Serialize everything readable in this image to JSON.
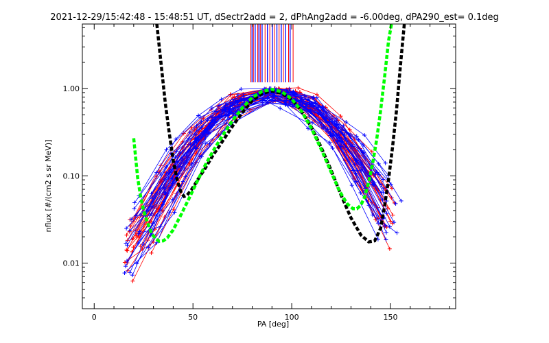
{
  "chart_data": {
    "type": "line",
    "title": "2021-12-29/15:42:48 - 15:48:51 UT, dSectr2add = 2, dPhAng2add = -6.00deg, dPA290_est=   0.1deg",
    "xlabel": "PA [deg]",
    "ylabel": "nflux [#/(cm2 s sr MeV)]",
    "xlim": [
      -6,
      183
    ],
    "ylim": [
      0.003,
      5.5
    ],
    "yscale": "log",
    "x_ticks": [
      0,
      50,
      100,
      150
    ],
    "x_tick_labels": [
      "0",
      "50",
      "100",
      "150"
    ],
    "y_ticks": [
      0.01,
      0.1,
      1.0
    ],
    "y_tick_labels": [
      "0.01",
      "0.10",
      "1.00"
    ],
    "grid": false,
    "colors": {
      "axes": "#000000",
      "red": "#ff0000",
      "blue": "#0000ff",
      "black_fit": "#000000",
      "green_fit": "#00ff00"
    },
    "vertical_markers": {
      "y_min": 1.18,
      "x_red": [
        79.3,
        80.6,
        82.8,
        84.1,
        86.5,
        88.9,
        91.1,
        93.6,
        95.8,
        98.4,
        100.7
      ],
      "x_blue": [
        79.9,
        81.5,
        83.4,
        85.0,
        87.7,
        90.2,
        92.5,
        94.7,
        96.9,
        99.2
      ]
    },
    "fit_curves": [
      {
        "color": "black",
        "style": "dashed",
        "points": [
          [
            31.7,
            5.5
          ],
          [
            34,
            1.8
          ],
          [
            36,
            0.68
          ],
          [
            38,
            0.31
          ],
          [
            40,
            0.15
          ],
          [
            42,
            0.09
          ],
          [
            44,
            0.064
          ],
          [
            45.5,
            0.058
          ],
          [
            47,
            0.06
          ],
          [
            49,
            0.068
          ],
          [
            51,
            0.08
          ],
          [
            53,
            0.095
          ],
          [
            56,
            0.12
          ],
          [
            60,
            0.17
          ],
          [
            65,
            0.25
          ],
          [
            70,
            0.37
          ],
          [
            75,
            0.53
          ],
          [
            80,
            0.73
          ],
          [
            85,
            0.88
          ],
          [
            90,
            0.94
          ],
          [
            95,
            0.88
          ],
          [
            100,
            0.75
          ],
          [
            105,
            0.55
          ],
          [
            110,
            0.36
          ],
          [
            115,
            0.21
          ],
          [
            120,
            0.115
          ],
          [
            125,
            0.06
          ],
          [
            130,
            0.033
          ],
          [
            135,
            0.021
          ],
          [
            139,
            0.0175
          ],
          [
            142,
            0.018
          ],
          [
            145,
            0.025
          ],
          [
            147,
            0.045
          ],
          [
            149,
            0.09
          ],
          [
            151,
            0.21
          ],
          [
            153,
            0.55
          ],
          [
            155,
            1.8
          ],
          [
            157,
            5.5
          ]
        ]
      },
      {
        "color": "green",
        "style": "dashed",
        "points": [
          [
            20,
            0.27
          ],
          [
            21,
            0.16
          ],
          [
            22,
            0.095
          ],
          [
            23.5,
            0.058
          ],
          [
            25,
            0.04
          ],
          [
            27,
            0.029
          ],
          [
            29,
            0.022
          ],
          [
            31,
            0.019
          ],
          [
            33,
            0.0178
          ],
          [
            35,
            0.018
          ],
          [
            37,
            0.0195
          ],
          [
            40,
            0.024
          ],
          [
            44,
            0.036
          ],
          [
            48,
            0.055
          ],
          [
            52,
            0.085
          ],
          [
            56,
            0.13
          ],
          [
            60,
            0.19
          ],
          [
            65,
            0.29
          ],
          [
            70,
            0.43
          ],
          [
            75,
            0.6
          ],
          [
            80,
            0.79
          ],
          [
            85,
            0.93
          ],
          [
            90,
            0.98
          ],
          [
            95,
            0.92
          ],
          [
            100,
            0.76
          ],
          [
            105,
            0.55
          ],
          [
            110,
            0.35
          ],
          [
            115,
            0.2
          ],
          [
            120,
            0.11
          ],
          [
            124,
            0.068
          ],
          [
            128,
            0.048
          ],
          [
            131,
            0.042
          ],
          [
            133,
            0.042
          ],
          [
            135,
            0.046
          ],
          [
            137,
            0.058
          ],
          [
            139,
            0.085
          ],
          [
            141,
            0.14
          ],
          [
            143,
            0.26
          ],
          [
            145,
            0.56
          ],
          [
            147,
            1.35
          ],
          [
            149,
            3.5
          ],
          [
            150.5,
            5.5
          ]
        ]
      }
    ]
  }
}
